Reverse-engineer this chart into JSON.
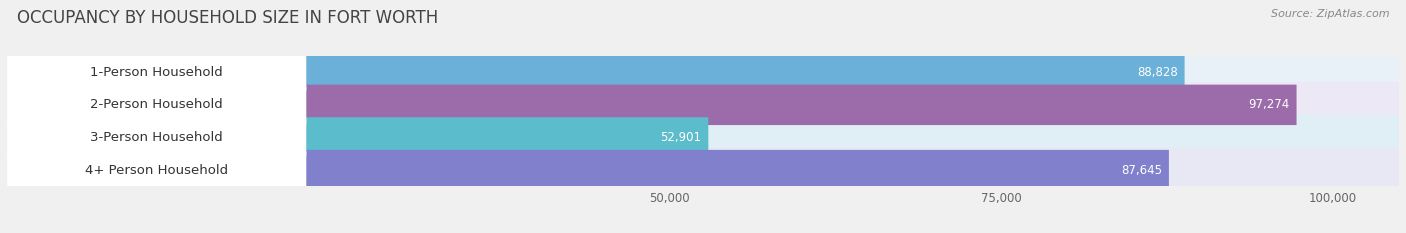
{
  "title": "OCCUPANCY BY HOUSEHOLD SIZE IN FORT WORTH",
  "source": "Source: ZipAtlas.com",
  "categories": [
    "1-Person Household",
    "2-Person Household",
    "3-Person Household",
    "4+ Person Household"
  ],
  "values": [
    88828,
    97274,
    52901,
    87645
  ],
  "bar_colors": [
    "#6ab0d8",
    "#9b6baa",
    "#5bbccc",
    "#8080cc"
  ],
  "bar_bg_colors": [
    "#e8f0f8",
    "#ede8f5",
    "#e0eff5",
    "#e8e8f5"
  ],
  "xlim_max": 105000,
  "xticks": [
    50000,
    75000,
    100000
  ],
  "xtick_labels": [
    "50,000",
    "75,000",
    "100,000"
  ],
  "title_fontsize": 12,
  "label_fontsize": 9.5,
  "value_fontsize": 8.5,
  "bar_height": 0.62,
  "background_color": "#f0f0f0",
  "row_bg_color": "#f5f5f5"
}
